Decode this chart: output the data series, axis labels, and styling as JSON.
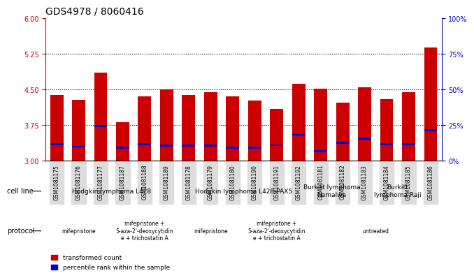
{
  "title": "GDS4978 / 8060416",
  "samples": [
    "GSM1081175",
    "GSM1081176",
    "GSM1081177",
    "GSM1081187",
    "GSM1081188",
    "GSM1081189",
    "GSM1081178",
    "GSM1081179",
    "GSM1081180",
    "GSM1081190",
    "GSM1081191",
    "GSM1081192",
    "GSM1081181",
    "GSM1081182",
    "GSM1081183",
    "GSM1081184",
    "GSM1081185",
    "GSM1081186"
  ],
  "bar_heights": [
    4.38,
    4.28,
    4.85,
    3.82,
    4.35,
    4.5,
    4.38,
    4.45,
    4.36,
    4.27,
    4.1,
    4.62,
    4.52,
    4.22,
    4.55,
    4.3,
    4.45,
    5.38
  ],
  "blue_positions": [
    3.35,
    3.3,
    3.73,
    3.28,
    3.35,
    3.32,
    3.32,
    3.32,
    3.28,
    3.28,
    3.33,
    3.55,
    3.2,
    3.38,
    3.47,
    3.35,
    3.35,
    3.65
  ],
  "bar_bottom": 3.0,
  "ylim_left": [
    3.0,
    6.0
  ],
  "ylim_right": [
    0,
    100
  ],
  "yticks_left": [
    3.0,
    3.75,
    4.5,
    5.25,
    6.0
  ],
  "yticks_right": [
    0,
    25,
    50,
    75,
    100
  ],
  "ytick_labels_right": [
    "0%",
    "25%",
    "50%",
    "75%",
    "100%"
  ],
  "hlines": [
    3.75,
    4.5,
    5.25
  ],
  "bar_color": "#cc0000",
  "blue_color": "#0000cc",
  "bar_width": 0.6,
  "cell_line_groups": [
    {
      "label": "Hodgkin lymphoma L428",
      "start": 0,
      "end": 5,
      "color": "#ccffcc"
    },
    {
      "label": "Hodgkin lymphoma L428-PAX5",
      "start": 6,
      "end": 11,
      "color": "#ccffcc"
    },
    {
      "label": "Burkitt lymphoma\nNamalwa",
      "start": 12,
      "end": 13,
      "color": "#ccffcc"
    },
    {
      "label": "Burkitt\nlymphoma Raji",
      "start": 14,
      "end": 17,
      "color": "#99ff99"
    }
  ],
  "protocol_groups": [
    {
      "label": "mifepristone",
      "start": 0,
      "end": 2,
      "color": "#ff99ff"
    },
    {
      "label": "mifepristone +\n5-aza-2'-deoxycytidin\ne + trichostatin A",
      "start": 3,
      "end": 5,
      "color": "#ffccff"
    },
    {
      "label": "mifepristone",
      "start": 6,
      "end": 8,
      "color": "#ff99ff"
    },
    {
      "label": "mifepristone +\n5-aza-2'-deoxycytidin\ne + trichostatin A",
      "start": 9,
      "end": 11,
      "color": "#ffccff"
    },
    {
      "label": "untreated",
      "start": 12,
      "end": 17,
      "color": "#ff99ff"
    }
  ],
  "legend_items": [
    {
      "label": "transformed count",
      "color": "#cc0000",
      "marker": "s"
    },
    {
      "label": "percentile rank within the sample",
      "color": "#0000cc",
      "marker": "s"
    }
  ],
  "left_yaxis_color": "#cc0000",
  "right_yaxis_color": "#0000bb",
  "title_fontsize": 10,
  "tick_fontsize": 7,
  "label_fontsize": 8
}
